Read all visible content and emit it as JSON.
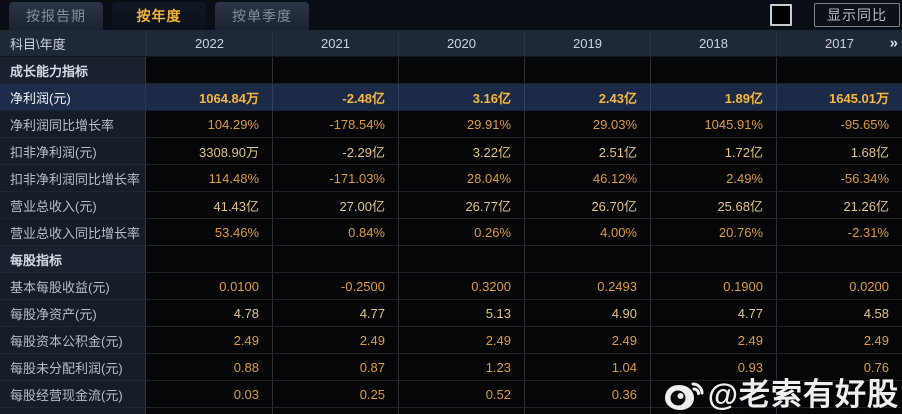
{
  "tabs": [
    {
      "label": "按报告期",
      "active": false
    },
    {
      "label": "按年度",
      "active": true
    },
    {
      "label": "按单季度",
      "active": false
    }
  ],
  "controls": {
    "show_yoy_label": "显示同比",
    "show_yoy_checked": false
  },
  "table": {
    "corner_label": "科目\\年度",
    "years": [
      "2022",
      "2021",
      "2020",
      "2019",
      "2018",
      "2017"
    ],
    "more_columns_icon": "»",
    "rows": [
      {
        "type": "section",
        "tone": "",
        "label": "成长能力指标",
        "values": [
          "",
          "",
          "",
          "",
          "",
          ""
        ]
      },
      {
        "type": "highlight",
        "tone": "",
        "label": "净利润(元)",
        "values": [
          "1064.84万",
          "-2.48亿",
          "3.16亿",
          "2.43亿",
          "1.89亿",
          "1645.01万"
        ]
      },
      {
        "type": "normal",
        "tone": "gold",
        "label": "净利润同比增长率",
        "values": [
          "104.29%",
          "-178.54%",
          "29.91%",
          "29.03%",
          "1045.91%",
          "-95.65%"
        ]
      },
      {
        "type": "normal",
        "tone": "wheat",
        "label": "扣非净利润(元)",
        "values": [
          "3308.90万",
          "-2.29亿",
          "3.22亿",
          "2.51亿",
          "1.72亿",
          "1.68亿"
        ]
      },
      {
        "type": "normal",
        "tone": "gold",
        "label": "扣非净利润同比增长率",
        "values": [
          "114.48%",
          "-171.03%",
          "28.04%",
          "46.12%",
          "2.49%",
          "-56.34%"
        ]
      },
      {
        "type": "normal",
        "tone": "wheat",
        "label": "营业总收入(元)",
        "values": [
          "41.43亿",
          "27.00亿",
          "26.77亿",
          "26.70亿",
          "25.68亿",
          "21.26亿"
        ]
      },
      {
        "type": "normal",
        "tone": "gold",
        "label": "营业总收入同比增长率",
        "values": [
          "53.46%",
          "0.84%",
          "0.26%",
          "4.00%",
          "20.76%",
          "-2.31%"
        ]
      },
      {
        "type": "section",
        "tone": "",
        "label": "每股指标",
        "values": [
          "",
          "",
          "",
          "",
          "",
          ""
        ]
      },
      {
        "type": "normal",
        "tone": "gold",
        "label": "基本每股收益(元)",
        "values": [
          "0.0100",
          "-0.2500",
          "0.3200",
          "0.2493",
          "0.1900",
          "0.0200"
        ]
      },
      {
        "type": "normal",
        "tone": "wheat",
        "label": "每股净资产(元)",
        "values": [
          "4.78",
          "4.77",
          "5.13",
          "4.90",
          "4.77",
          "4.58"
        ]
      },
      {
        "type": "normal",
        "tone": "gold",
        "label": "每股资本公积金(元)",
        "values": [
          "2.49",
          "2.49",
          "2.49",
          "2.49",
          "2.49",
          "2.49"
        ]
      },
      {
        "type": "normal",
        "tone": "gold",
        "label": "每股未分配利润(元)",
        "values": [
          "0.88",
          "0.87",
          "1.23",
          "1.04",
          "0.93",
          "0.76"
        ]
      },
      {
        "type": "normal",
        "tone": "gold",
        "label": "每股经营现金流(元)",
        "values": [
          "0.03",
          "0.25",
          "0.52",
          "0.36",
          "",
          ""
        ]
      }
    ]
  },
  "watermark": {
    "handle": "@老索有好股",
    "icon": "weibo-icon"
  },
  "colors": {
    "accent_gold": "#dd9b3c",
    "value_wheat": "#e3c287",
    "highlight_gold": "#f8b73e",
    "highlight_row_bg": "#1b2a47",
    "active_tab_text": "#f2b33a",
    "header_bg": "#1e2836",
    "label_col_bg": "#151d28"
  }
}
